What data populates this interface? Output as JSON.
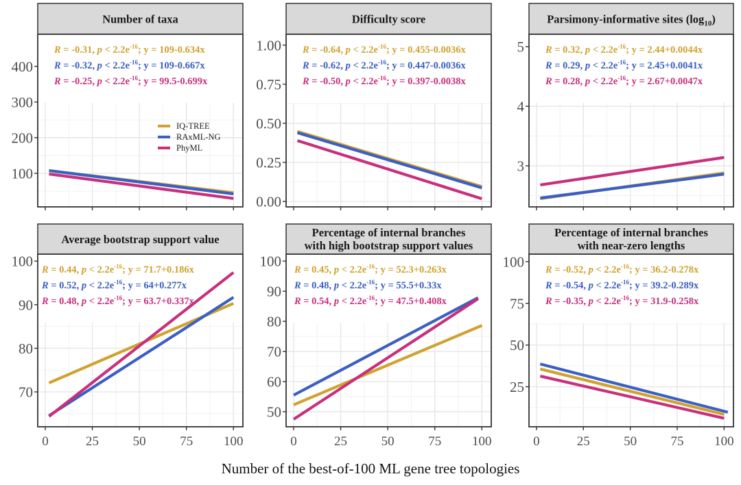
{
  "legend": {
    "position": "inside-top-panel-1-right",
    "entries": [
      {
        "name": "IQ-TREE",
        "color": "#d0a22f"
      },
      {
        "name": "RAxML-NG",
        "color": "#3b5fc2"
      },
      {
        "name": "PhyML",
        "color": "#c8307c"
      }
    ]
  },
  "xlabel": "Number of the best-of-100 ML gene tree topologies",
  "chart_data": [
    {
      "type": "line",
      "title": "Number of taxa",
      "title_sub": "",
      "xlabel": "",
      "ylabel": "",
      "xlim": [
        -4,
        105
      ],
      "ylim": [
        6,
        490
      ],
      "yticks": [
        100,
        200,
        300,
        400
      ],
      "ytick_labels": [
        "100",
        "200",
        "300",
        "400"
      ],
      "xticks": [
        0,
        25,
        50,
        75,
        100
      ],
      "xtick_labels": [],
      "grid": true,
      "show_legend": true,
      "series": [
        {
          "name": "IQ-TREE",
          "intercept": 109,
          "slope": -0.634,
          "x": [
            2,
            100
          ],
          "annotation": {
            "R": "-0.31",
            "p": "2.2e-16",
            "eq": "y = 109-0.634x"
          }
        },
        {
          "name": "RAxML-NG",
          "intercept": 109,
          "slope": -0.667,
          "x": [
            2,
            100
          ],
          "annotation": {
            "R": "-0.32",
            "p": "2.2e-16",
            "eq": "y = 109-0.667x"
          }
        },
        {
          "name": "PhyML",
          "intercept": 99.5,
          "slope": -0.699,
          "x": [
            2,
            100
          ],
          "annotation": {
            "R": "-0.25",
            "p": "2.2e-16",
            "eq": "y = 99.5-0.699x"
          }
        }
      ]
    },
    {
      "type": "line",
      "title": "Difficulty score",
      "title_sub": "",
      "xlim": [
        -4,
        105
      ],
      "ylim": [
        -0.035,
        1.07
      ],
      "yticks": [
        0,
        0.25,
        0.5,
        0.75,
        1.0
      ],
      "ytick_labels": [
        "0.00",
        "0.25",
        "0.50",
        "0.75",
        "1.00"
      ],
      "xticks": [
        0,
        25,
        50,
        75,
        100
      ],
      "xtick_labels": [],
      "grid": true,
      "show_legend": false,
      "series": [
        {
          "name": "IQ-TREE",
          "intercept": 0.455,
          "slope": -0.0036,
          "x": [
            2,
            100
          ],
          "annotation": {
            "R": "-0.64",
            "p": "2.2e-16",
            "eq": "y = 0.455-0.0036x"
          }
        },
        {
          "name": "RAxML-NG",
          "intercept": 0.447,
          "slope": -0.0036,
          "x": [
            2,
            100
          ],
          "annotation": {
            "R": "-0.62",
            "p": "2.2e-16",
            "eq": "y = 0.447-0.0036x"
          }
        },
        {
          "name": "PhyML",
          "intercept": 0.397,
          "slope": -0.0038,
          "x": [
            2,
            100
          ],
          "annotation": {
            "R": "-0.50",
            "p": "2.2e-16",
            "eq": "y = 0.397-0.0038x"
          }
        }
      ]
    },
    {
      "type": "line",
      "title": "Parsimony-informative sites (log",
      "title_sub": "10",
      "title_end": ")",
      "xlim": [
        -4,
        105
      ],
      "ylim": [
        2.31,
        5.21
      ],
      "yticks": [
        3,
        4,
        5
      ],
      "ytick_labels": [
        "3",
        "4",
        "5"
      ],
      "xticks": [
        0,
        25,
        50,
        75,
        100
      ],
      "xtick_labels": [],
      "grid": true,
      "show_legend": false,
      "series": [
        {
          "name": "IQ-TREE",
          "intercept": 2.44,
          "slope": 0.0044,
          "x": [
            2,
            100
          ],
          "annotation": {
            "R": "0.32",
            "p": "2.2e-16",
            "eq": "y = 2.44+0.0044x"
          }
        },
        {
          "name": "RAxML-NG",
          "intercept": 2.45,
          "slope": 0.0041,
          "x": [
            2,
            100
          ],
          "annotation": {
            "R": "0.29",
            "p": "2.2e-16",
            "eq": "y = 2.45+0.0041x"
          }
        },
        {
          "name": "PhyML",
          "intercept": 2.67,
          "slope": 0.0047,
          "x": [
            2,
            100
          ],
          "annotation": {
            "R": "0.28",
            "p": "2.2e-16",
            "eq": "y = 2.67+0.0047x"
          }
        }
      ]
    },
    {
      "type": "line",
      "title": "Average bootstrap support value",
      "title_sub": "",
      "xlim": [
        -4,
        105
      ],
      "ylim": [
        62,
        101.6
      ],
      "yticks": [
        70,
        80,
        90,
        100
      ],
      "ytick_labels": [
        "70",
        "80",
        "90",
        "100"
      ],
      "xticks": [
        0,
        25,
        50,
        75,
        100
      ],
      "xtick_labels": [
        "0",
        "25",
        "50",
        "75",
        "100"
      ],
      "grid": true,
      "show_legend": false,
      "series": [
        {
          "name": "IQ-TREE",
          "intercept": 71.7,
          "slope": 0.186,
          "x": [
            2,
            100
          ],
          "annotation": {
            "R": "0.44",
            "p": "2.2e-16",
            "eq": "y = 71.7+0.186x"
          }
        },
        {
          "name": "RAxML-NG",
          "intercept": 64,
          "slope": 0.277,
          "x": [
            2,
            100
          ],
          "annotation": {
            "R": "0.52",
            "p": "2.2e-16",
            "eq": "y = 64+0.277x"
          }
        },
        {
          "name": "PhyML",
          "intercept": 63.7,
          "slope": 0.337,
          "x": [
            2,
            100
          ],
          "annotation": {
            "R": "0.48",
            "p": "2.2e-16",
            "eq": "y = 63.7+0.337x"
          }
        }
      ]
    },
    {
      "type": "line",
      "title": "Percentage of internal branches\nwith high bootstrap support values",
      "title_sub": "",
      "xlim": [
        -4,
        105
      ],
      "ylim": [
        45,
        102.3
      ],
      "yticks": [
        50,
        60,
        70,
        80,
        90,
        100
      ],
      "ytick_labels": [
        "50",
        "60",
        "70",
        "80",
        "90",
        "100"
      ],
      "xticks": [
        0,
        25,
        50,
        75,
        100
      ],
      "xtick_labels": [
        "0",
        "25",
        "50",
        "75",
        "100"
      ],
      "grid": true,
      "show_legend": false,
      "series": [
        {
          "name": "IQ-TREE",
          "intercept": 52.3,
          "slope": 0.263,
          "x": [
            0,
            100
          ],
          "annotation": {
            "R": "0.45",
            "p": "2.2e-16",
            "eq": "y = 52.3+0.263x"
          }
        },
        {
          "name": "RAxML-NG",
          "intercept": 55.5,
          "slope": 0.33,
          "x": [
            0,
            98
          ],
          "annotation": {
            "R": "0.48",
            "p": "2.2e-16",
            "eq": "y = 55.5+0.33x"
          }
        },
        {
          "name": "PhyML",
          "intercept": 47.5,
          "slope": 0.408,
          "x": [
            0,
            98
          ],
          "annotation": {
            "R": "0.54",
            "p": "2.2e-16",
            "eq": "y = 47.5+0.408x"
          }
        }
      ]
    },
    {
      "type": "line",
      "title": "Percentage of internal branches\nwith near-zero lengths",
      "title_sub": "",
      "xlim": [
        -4,
        105
      ],
      "ylim": [
        1,
        104.5
      ],
      "yticks": [
        25,
        50,
        75,
        100
      ],
      "ytick_labels": [
        "25",
        "50",
        "75",
        "100"
      ],
      "xticks": [
        0,
        25,
        50,
        75,
        100
      ],
      "xtick_labels": [
        "0",
        "25",
        "50",
        "75",
        "100"
      ],
      "grid": true,
      "show_legend": false,
      "series": [
        {
          "name": "IQ-TREE",
          "intercept": 36.2,
          "slope": -0.278,
          "x": [
            2,
            100
          ],
          "annotation": {
            "R": "-0.52",
            "p": "2.2e-16",
            "eq": "y = 36.2-0.278x"
          }
        },
        {
          "name": "RAxML-NG",
          "intercept": 39.2,
          "slope": -0.289,
          "x": [
            2,
            102
          ],
          "annotation": {
            "R": "-0.54",
            "p": "2.2e-16",
            "eq": "y = 39.2-0.289x"
          }
        },
        {
          "name": "PhyML",
          "intercept": 31.9,
          "slope": -0.258,
          "x": [
            2,
            100
          ],
          "annotation": {
            "R": "-0.35",
            "p": "2.2e-16",
            "eq": "y = 31.9-0.258x"
          }
        }
      ]
    }
  ]
}
